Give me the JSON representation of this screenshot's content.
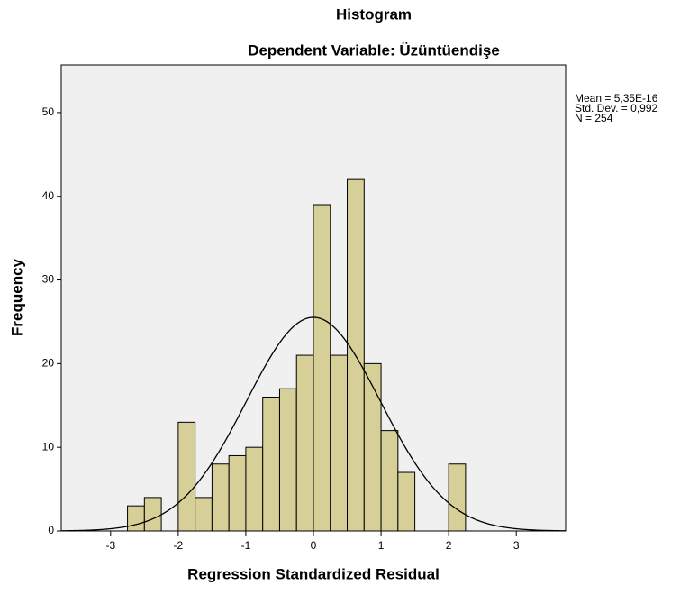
{
  "chart_data": {
    "type": "histogram",
    "title": "Histogram",
    "subtitle": "Dependent Variable: Üzüntüendişe",
    "x_label": "Regression Standardized Residual",
    "y_label": "Frequency",
    "bins": [
      -2.75,
      -2.5,
      -2.25,
      -2.0,
      -1.75,
      -1.5,
      -1.25,
      -1.0,
      -0.75,
      -0.5,
      -0.25,
      0,
      0.25,
      0.5,
      0.75,
      1.0,
      1.25,
      1.5,
      1.75,
      2.0,
      2.25
    ],
    "values": [
      3,
      4,
      0,
      13,
      4,
      8,
      9,
      10,
      16,
      17,
      21,
      39,
      21,
      42,
      20,
      12,
      7,
      0,
      0,
      8
    ],
    "color": "#d6cf98",
    "xlim": [
      -3.73,
      3.73
    ],
    "ylim": [
      0,
      55.7
    ],
    "xticks": [
      -3,
      -2,
      -1,
      0,
      1,
      2,
      3
    ],
    "yticks": [
      0,
      10,
      20,
      30,
      40,
      50
    ],
    "stats": [
      {
        "label": "Mean = 5,35E-16",
        "value": 5.35e-16
      },
      {
        "label": "Std. Dev. = 0,992",
        "value": 0.992
      },
      {
        "label": "N = 254",
        "value": 254
      }
    ]
  }
}
